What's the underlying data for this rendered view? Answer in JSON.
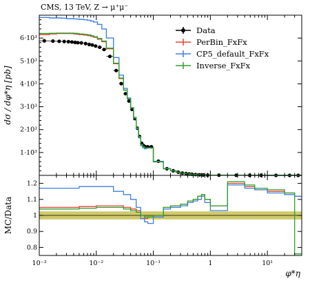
{
  "chart_data": [
    {
      "type": "line",
      "title": "CMS, 13 TeV, Z → μ⁺μ⁻",
      "ylabel": "dσ / dφ*η [pb]",
      "xscale": "log",
      "xlim": [
        0.001,
        40
      ],
      "ylim": [
        0,
        7000
      ],
      "y_ticks": [
        {
          "v": 1000,
          "label": "1·10³"
        },
        {
          "v": 2000,
          "label": "2·10³"
        },
        {
          "v": 3000,
          "label": "3·10³"
        },
        {
          "v": 4000,
          "label": "4·10³"
        },
        {
          "v": 5000,
          "label": "5·10³"
        },
        {
          "v": 6000,
          "label": "6·10³"
        }
      ],
      "legend_position": "top-right",
      "bin_edges": [
        0.001,
        0.0015,
        0.002,
        0.0025,
        0.003,
        0.0035,
        0.004,
        0.0045,
        0.005,
        0.006,
        0.007,
        0.008,
        0.009,
        0.0105,
        0.0125,
        0.015,
        0.02,
        0.025,
        0.03,
        0.035,
        0.04,
        0.045,
        0.05,
        0.055,
        0.06,
        0.065,
        0.07,
        0.075,
        0.085,
        0.1,
        0.15,
        0.2,
        0.25,
        0.3,
        0.35,
        0.4,
        0.45,
        0.5,
        0.6,
        0.7,
        0.8,
        1.0,
        2.0,
        4.0,
        6.0,
        10.0,
        20.0,
        30.0,
        40.0
      ],
      "series": [
        {
          "name": "Data",
          "color": "#000000",
          "style": "points",
          "values": [
            5880,
            5870,
            5860,
            5850,
            5840,
            5830,
            5810,
            5800,
            5790,
            5760,
            5720,
            5700,
            5650,
            5600,
            5500,
            5200,
            4580,
            4010,
            3570,
            3250,
            2880,
            2480,
            2060,
            1700,
            1400,
            1300,
            1250,
            1250,
            1250,
            620,
            290,
            200,
            140,
            100,
            80,
            60,
            50,
            35,
            25,
            18,
            12,
            8,
            6,
            4,
            2,
            1.5,
            1,
            0.5
          ]
        },
        {
          "name": "PerBin_FxFx",
          "color": "#e8412b",
          "style": "step",
          "values": [
            6150,
            6180,
            6200,
            6200,
            6200,
            6200,
            6180,
            6170,
            6150,
            6130,
            6110,
            6070,
            6030,
            5950,
            5840,
            5530,
            4880,
            4230,
            3720,
            3350,
            2950,
            2520,
            2070,
            1690,
            1340,
            1250,
            1200,
            1200,
            1200,
            590,
            290,
            200,
            140,
            100,
            80,
            60,
            50,
            35,
            25,
            18,
            12,
            8,
            6,
            4,
            2,
            1.5,
            1,
            0.5
          ]
        },
        {
          "name": "CP5_default_FxFx",
          "color": "#3d7ee6",
          "style": "step",
          "values": [
            6900,
            6880,
            6880,
            6870,
            6850,
            6850,
            6840,
            6830,
            6820,
            6800,
            6780,
            6740,
            6700,
            6600,
            6400,
            6000,
            5150,
            4380,
            3800,
            3380,
            2950,
            2500,
            2040,
            1640,
            1300,
            1210,
            1160,
            1200,
            1200,
            610,
            300,
            200,
            140,
            100,
            80,
            60,
            50,
            35,
            25,
            18,
            12,
            8,
            6,
            4,
            2,
            1.5,
            1,
            0.5
          ]
        },
        {
          "name": "Inverse_FxFx",
          "color": "#2ca02c",
          "style": "step",
          "values": [
            6200,
            6210,
            6220,
            6220,
            6220,
            6220,
            6210,
            6200,
            6180,
            6160,
            6140,
            6100,
            6060,
            5980,
            5870,
            5560,
            4900,
            4250,
            3730,
            3350,
            2960,
            2530,
            2080,
            1690,
            1340,
            1250,
            1200,
            1200,
            1200,
            590,
            290,
            200,
            140,
            100,
            80,
            60,
            50,
            35,
            25,
            18,
            12,
            8,
            6,
            4,
            2,
            1.5,
            1,
            0.5
          ]
        }
      ]
    },
    {
      "type": "line",
      "ylabel": "MC/Data",
      "xlabel": "φ*η",
      "xscale": "log",
      "xlim": [
        0.001,
        40
      ],
      "ylim": [
        0.75,
        1.25
      ],
      "y_ticks": [
        {
          "v": 0.8,
          "label": "0.8"
        },
        {
          "v": 0.9,
          "label": "0.9"
        },
        {
          "v": 1.0,
          "label": "1"
        },
        {
          "v": 1.1,
          "label": "1.1"
        },
        {
          "v": 1.2,
          "label": "1.2"
        }
      ],
      "x_ticks": [
        {
          "v": 0.001,
          "label": "10⁻³"
        },
        {
          "v": 0.01,
          "label": "10⁻²"
        },
        {
          "v": 0.1,
          "label": "10⁻¹"
        },
        {
          "v": 1,
          "label": "1"
        },
        {
          "v": 10,
          "label": "10¹"
        }
      ],
      "band": {
        "color": "#c8c050",
        "lower": 0.975,
        "upper": 1.025
      },
      "bin_edges": [
        0.001,
        0.005,
        0.01,
        0.02,
        0.03,
        0.04,
        0.05,
        0.06,
        0.07,
        0.08,
        0.1,
        0.15,
        0.2,
        0.3,
        0.4,
        0.5,
        0.6,
        0.7,
        0.8,
        1.0,
        2.0,
        4.0,
        6.0,
        10.0,
        20.0,
        30.0,
        40.0
      ],
      "series": [
        {
          "name": "PerBin_FxFx",
          "color": "#e8412b",
          "values": [
            1.05,
            1.055,
            1.06,
            1.06,
            1.05,
            1.04,
            1.03,
            1.0,
            0.98,
            0.99,
            1.0,
            1.05,
            1.06,
            1.07,
            1.09,
            1.1,
            1.12,
            1.13,
            1.1,
            1.06,
            1.2,
            1.18,
            1.16,
            1.15,
            1.14,
            1.12
          ]
        },
        {
          "name": "CP5_default_FxFx",
          "color": "#3d7ee6",
          "values": [
            1.17,
            1.18,
            1.18,
            1.15,
            1.13,
            1.1,
            1.05,
            0.98,
            0.96,
            0.95,
            0.99,
            1.04,
            1.05,
            1.06,
            1.08,
            1.09,
            1.1,
            1.12,
            1.08,
            1.03,
            1.19,
            1.17,
            1.16,
            1.14,
            1.13,
            1.12
          ]
        },
        {
          "name": "Inverse_FxFx",
          "color": "#2ca02c",
          "values": [
            1.04,
            1.045,
            1.05,
            1.05,
            1.04,
            1.03,
            1.02,
            1.0,
            0.99,
            0.99,
            1.0,
            1.05,
            1.06,
            1.07,
            1.09,
            1.1,
            1.12,
            1.13,
            1.1,
            1.06,
            1.21,
            1.19,
            1.17,
            1.16,
            1.14,
            0.76
          ]
        }
      ]
    }
  ]
}
